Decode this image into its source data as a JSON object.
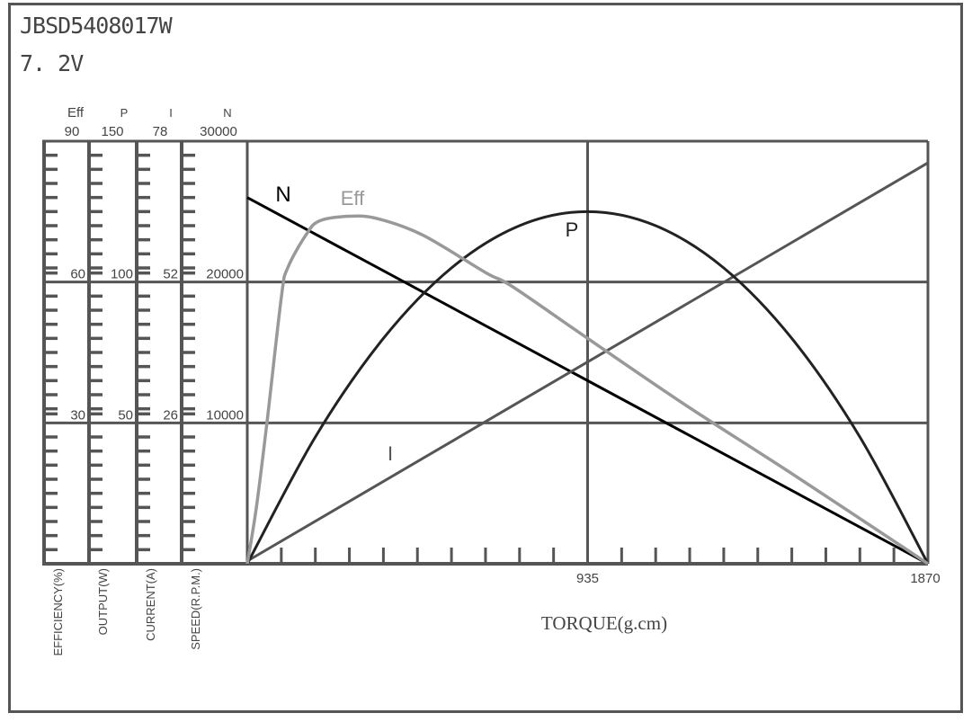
{
  "chart_data": {
    "type": "line",
    "title": "JBSD5408017W",
    "subtitle": "7. 2V",
    "xlabel": "TORQUE(g.cm)",
    "xlim": [
      0,
      1870
    ],
    "x_tick_labels": [
      "935",
      "1870"
    ],
    "x_minor_divisions": 20,
    "grid": true,
    "axes": [
      {
        "key": "Eff",
        "header": "Eff",
        "label": "EFFICIENCY(%)",
        "ticks": [
          "30",
          "60",
          "90"
        ],
        "max": 90
      },
      {
        "key": "P",
        "header": "P",
        "label": "OUTPUT(W)",
        "ticks": [
          "50",
          "100",
          "150"
        ],
        "max": 150
      },
      {
        "key": "I",
        "header": "I",
        "label": "CURRENT(A)",
        "ticks": [
          "26",
          "52",
          "78"
        ],
        "max": 78
      },
      {
        "key": "N",
        "header": "N",
        "label": "SPEED(R.P.M.)",
        "ticks": [
          "10000",
          "20000",
          "30000"
        ],
        "max": 30000
      }
    ],
    "series": [
      {
        "name": "N",
        "axis": "N",
        "color": "#000000",
        "points": [
          [
            0,
            26000
          ],
          [
            1870,
            0
          ]
        ]
      },
      {
        "name": "I",
        "axis": "I",
        "color": "#555555",
        "points": [
          [
            0,
            0.5
          ],
          [
            1870,
            74
          ]
        ]
      },
      {
        "name": "P",
        "axis": "P",
        "color": "#222222",
        "points": [
          [
            0,
            0
          ],
          [
            187,
            45
          ],
          [
            374,
            80
          ],
          [
            561,
            105
          ],
          [
            748,
            120
          ],
          [
            935,
            125
          ],
          [
            1122,
            120
          ],
          [
            1309,
            105
          ],
          [
            1496,
            80
          ],
          [
            1683,
            45
          ],
          [
            1870,
            0
          ]
        ]
      },
      {
        "name": "Eff",
        "axis": "Eff",
        "color": "#999999",
        "points": [
          [
            0,
            0
          ],
          [
            25,
            12
          ],
          [
            54,
            30
          ],
          [
            94,
            57
          ],
          [
            111,
            63
          ],
          [
            161,
            70
          ],
          [
            198,
            73
          ],
          [
            279,
            74
          ],
          [
            358,
            73.5
          ],
          [
            482,
            70
          ],
          [
            655,
            62
          ],
          [
            729,
            59
          ],
          [
            935,
            48
          ],
          [
            1200,
            34
          ],
          [
            1500,
            19
          ],
          [
            1870,
            0
          ]
        ]
      }
    ]
  }
}
